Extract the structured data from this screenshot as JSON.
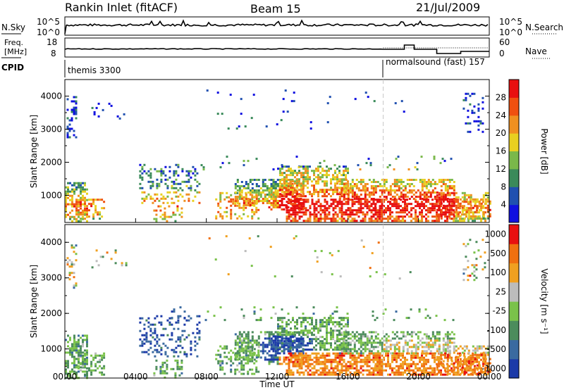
{
  "header": {
    "station": "Rankin Inlet (fitACF)",
    "beam": "Beam 15",
    "date": "21/Jul/2009"
  },
  "noise_panel": {
    "left_label": "N.Sky",
    "right_label": "N.Search",
    "left_ticks": [
      "10^5",
      "10^0"
    ],
    "right_ticks": [
      "10^5",
      "10^0"
    ]
  },
  "freq_panel": {
    "left_label_1": "Freq.",
    "left_label_2": "[MHz]",
    "right_label": "Nave",
    "left_ticks": [
      "18",
      "8"
    ],
    "right_ticks": [
      "60",
      "0"
    ]
  },
  "cpid_panel": {
    "label": "CPID",
    "mode_1": "themis 3300",
    "mode_2": "normalsound (fast) 157"
  },
  "chart_data": [
    {
      "type": "heatmap",
      "parameter": "power",
      "ylabel": "Slant Range [km]",
      "ylim": [
        180,
        4500
      ],
      "yticks": [
        "1000",
        "2000",
        "3000",
        "4000"
      ],
      "xlim_hours": [
        0,
        24
      ],
      "colorbar_label": "Power [dB]",
      "colorbar_range": [
        0,
        30
      ],
      "colorbar_ticks": [
        "4",
        "8",
        "12",
        "16",
        "20",
        "24",
        "28"
      ],
      "colors": [
        "#1010e0",
        "#2050b0",
        "#3a8a5a",
        "#7ab84a",
        "#e8d020",
        "#f09020",
        "#f05010",
        "#e81010"
      ],
      "mode_change_hour": 18.0
    },
    {
      "type": "heatmap",
      "parameter": "velocity",
      "ylabel": "Slant Range [km]",
      "ylim": [
        180,
        4500
      ],
      "yticks": [
        "1000",
        "2000",
        "3000",
        "4000"
      ],
      "xlim_hours": [
        0,
        24
      ],
      "colorbar_label": "Velocity [m s⁻¹]",
      "colorbar_ticks": [
        "1000",
        "500",
        "100",
        "25",
        "-25",
        "-100",
        "-500",
        "-1000"
      ],
      "colors": [
        "#1c3aa8",
        "#3a6aa0",
        "#4c8c5c",
        "#7ac24a",
        "#bcbcbc",
        "#f0a020",
        "#f07010",
        "#e81010"
      ],
      "mode_change_hour": 18.0
    }
  ],
  "xaxis": {
    "ticks": [
      "00:00",
      "04:00",
      "08:00",
      "12:00",
      "16:00",
      "20:00",
      "00:00"
    ],
    "label": "Time UT"
  }
}
